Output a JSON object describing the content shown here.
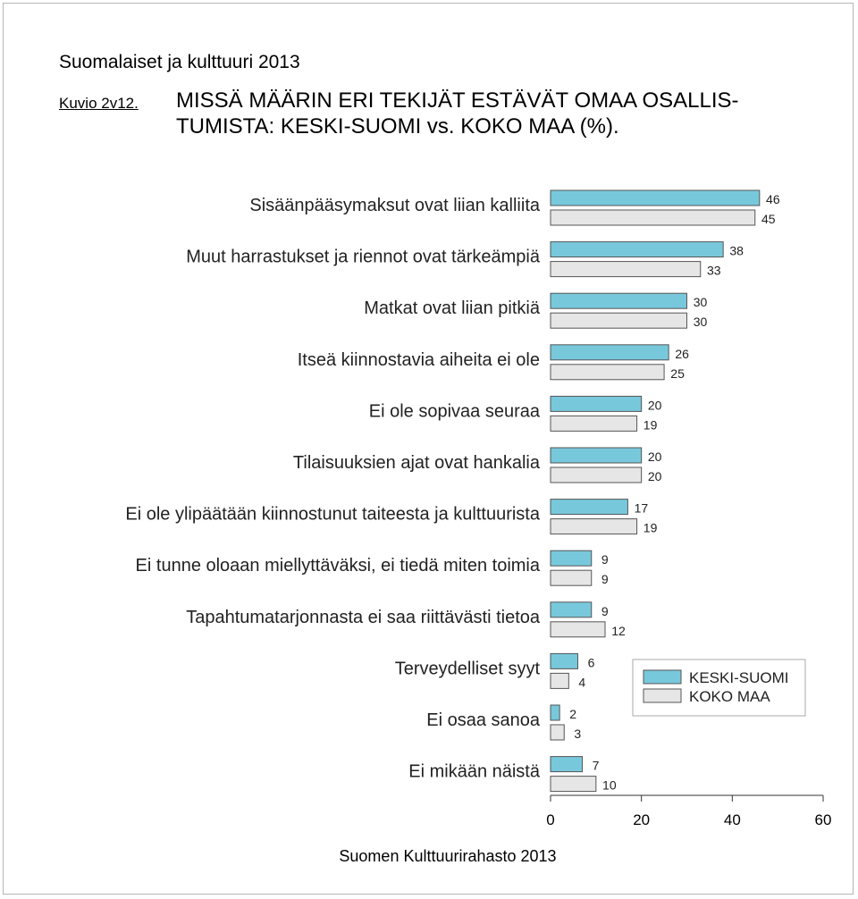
{
  "header": "Suomalaiset ja kulttuuri 2013",
  "figure_number": "Kuvio 2v12.",
  "title": "MISSÄ MÄÄRIN ERI TEKIJÄT ESTÄVÄT OMAA OSALLIS-TUMISTA: KESKI-SUOMI vs. KOKO MAA (%).",
  "footer": "Suomen Kulttuurirahasto 2013",
  "colors": {
    "series_1": "#78c8dc",
    "series_2": "#e6e6e6",
    "bar_border": "#555555"
  },
  "chart_data": {
    "type": "bar",
    "orientation": "horizontal",
    "categories": [
      "Sisäänpääsymaksut ovat liian kalliita",
      "Muut harrastukset ja riennot ovat tärkeämpiä",
      "Matkat ovat liian pitkiä",
      "Itseä kiinnostavia aiheita ei ole",
      "Ei ole sopivaa seuraa",
      "Tilaisuuksien ajat ovat hankalia",
      "Ei ole ylipäätään kiinnostunut taiteesta ja kulttuurista",
      "Ei tunne oloaan miellyttäväksi, ei tiedä miten toimia",
      "Tapahtumatarjonnasta ei saa riittävästi tietoa",
      "Terveydelliset syyt",
      "Ei osaa sanoa",
      "Ei mikään näistä"
    ],
    "series": [
      {
        "name": "KESKI-SUOMI",
        "values": [
          46,
          38,
          30,
          26,
          20,
          20,
          17,
          9,
          9,
          6,
          2,
          7
        ]
      },
      {
        "name": "KOKO MAA",
        "values": [
          45,
          33,
          30,
          25,
          19,
          20,
          19,
          9,
          12,
          4,
          3,
          10
        ]
      }
    ],
    "xlim": [
      0,
      60
    ],
    "xticks": [
      0,
      20,
      40,
      60
    ],
    "xlabel": "",
    "ylabel": "",
    "grid": false,
    "legend_position": "right"
  }
}
